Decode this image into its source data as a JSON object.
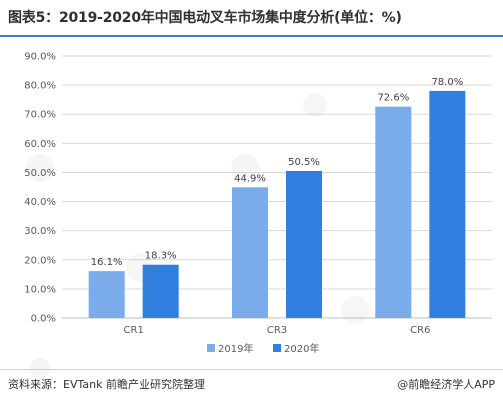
{
  "title": "图表5：2019-2020年中国电动叉车市场集中度分析(单位：%)",
  "footer": {
    "source": "资料来源：EVTank 前瞻产业研究院整理",
    "brand": "@前瞻经济学人APP"
  },
  "colors": {
    "series_2019": "#7aabea",
    "series_2020": "#2e7fde",
    "title_rule": "#4f7cc1",
    "grid": "#d9d9d9"
  },
  "chart_data": {
    "type": "bar",
    "title": "图表5：2019-2020年中国电动叉车市场集中度分析(单位：%)",
    "categories": [
      "CR1",
      "CR3",
      "CR6"
    ],
    "series": [
      {
        "name": "2019年",
        "values": [
          16.1,
          44.9,
          72.6
        ],
        "labels": [
          "16.1%",
          "44.9%",
          "72.6%"
        ]
      },
      {
        "name": "2020年",
        "values": [
          18.3,
          50.5,
          78.0
        ],
        "labels": [
          "18.3%",
          "50.5%",
          "78.0%"
        ]
      }
    ],
    "yticks": [
      "0.0%",
      "10.0%",
      "20.0%",
      "30.0%",
      "40.0%",
      "50.0%",
      "60.0%",
      "70.0%",
      "80.0%",
      "90.0%"
    ],
    "ylim": [
      0,
      90
    ],
    "xlabel": "",
    "ylabel": "",
    "grid": true,
    "legend_position": "bottom"
  }
}
